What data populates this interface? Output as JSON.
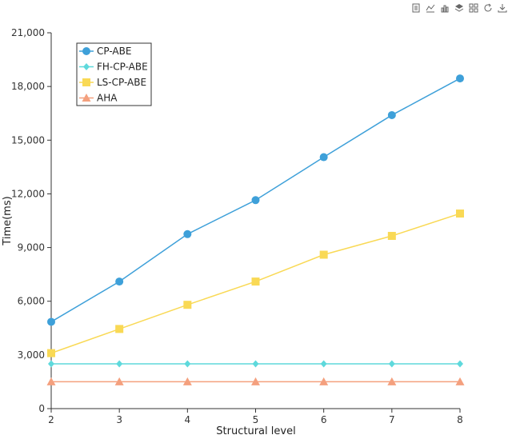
{
  "toolbar": {
    "icons": [
      "data-view-icon",
      "line-chart-icon",
      "bar-chart-icon",
      "stack-icon",
      "tiled-icon",
      "restore-icon",
      "save-image-icon"
    ]
  },
  "chart_data": {
    "type": "line",
    "title": "",
    "xlabel": "Structural level",
    "ylabel": "Time(ms)",
    "x": [
      2,
      3,
      4,
      5,
      6,
      7,
      8
    ],
    "ylim": [
      0,
      21000
    ],
    "yticks": [
      0,
      3000,
      6000,
      9000,
      12000,
      15000,
      18000,
      21000
    ],
    "ytick_labels": [
      "0",
      "3,000",
      "6,000",
      "9,000",
      "12,000",
      "15,000",
      "18,000",
      "21,000"
    ],
    "xtick_labels": [
      "2",
      "3",
      "4",
      "5",
      "6",
      "7",
      "8"
    ],
    "grid": false,
    "legend_position": "top-left",
    "series": [
      {
        "name": "CP-ABE",
        "marker": "circle",
        "color": "#3ea0d9",
        "values": [
          4850,
          7100,
          9750,
          11650,
          14050,
          16400,
          18450
        ]
      },
      {
        "name": "FH-CP-ABE",
        "marker": "diamond",
        "color": "#5ed9dc",
        "values": [
          2500,
          2500,
          2500,
          2500,
          2500,
          2500,
          2500
        ]
      },
      {
        "name": "LS-CP-ABE",
        "marker": "square",
        "color": "#f9d955",
        "values": [
          3100,
          4450,
          5800,
          7100,
          8600,
          9650,
          10900
        ]
      },
      {
        "name": "AHA",
        "marker": "triangle",
        "color": "#f4a07e",
        "values": [
          1500,
          1500,
          1500,
          1500,
          1500,
          1500,
          1500
        ]
      }
    ]
  }
}
